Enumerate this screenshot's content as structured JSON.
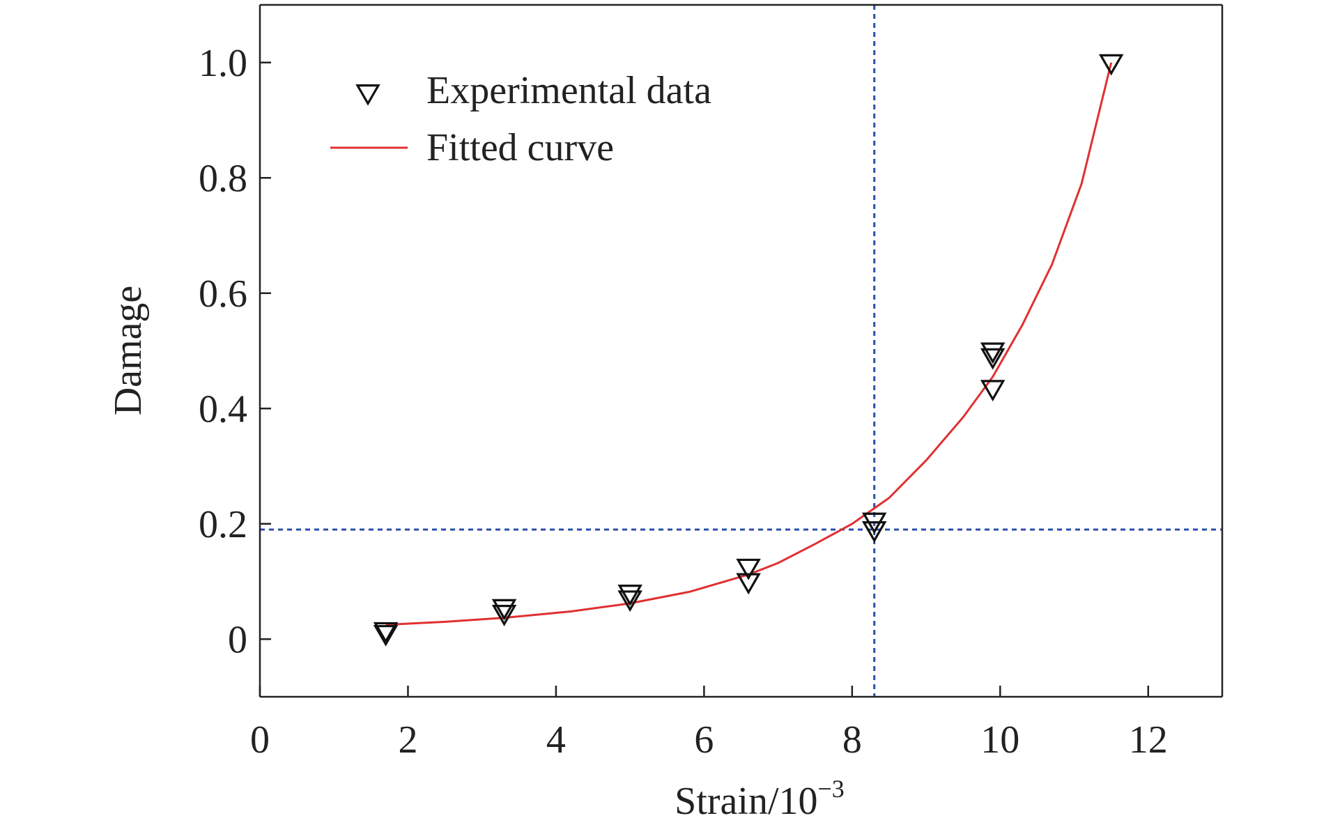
{
  "chart_data": {
    "type": "scatter",
    "title": "",
    "xlabel": "Strain/10",
    "xlabel_sup": "−3",
    "ylabel": "Damage",
    "xlim": [
      0,
      13
    ],
    "ylim": [
      -0.1,
      1.1
    ],
    "x_ticks": [
      0,
      2,
      4,
      6,
      8,
      10,
      12
    ],
    "x_tick_labels": [
      "0",
      "2",
      "4",
      "6",
      "8",
      "10",
      "12"
    ],
    "y_ticks": [
      0,
      0.2,
      0.4,
      0.6,
      0.8,
      1.0
    ],
    "y_tick_labels": [
      "0",
      "0.2",
      "0.4",
      "0.6",
      "0.8",
      "1.0"
    ],
    "grid": false,
    "legend_position": "top-left",
    "series": [
      {
        "name": "Experimental data",
        "kind": "scatter",
        "marker": "down-triangle-open",
        "color": "#111111",
        "points": [
          {
            "x": 1.7,
            "y": 0.015
          },
          {
            "x": 1.7,
            "y": 0.01
          },
          {
            "x": 3.3,
            "y": 0.055
          },
          {
            "x": 3.3,
            "y": 0.045
          },
          {
            "x": 5.0,
            "y": 0.08
          },
          {
            "x": 5.0,
            "y": 0.07
          },
          {
            "x": 6.6,
            "y": 0.125
          },
          {
            "x": 6.6,
            "y": 0.1
          },
          {
            "x": 8.3,
            "y": 0.205
          },
          {
            "x": 8.3,
            "y": 0.19
          },
          {
            "x": 9.9,
            "y": 0.5
          },
          {
            "x": 9.9,
            "y": 0.49
          },
          {
            "x": 9.9,
            "y": 0.435
          },
          {
            "x": 11.5,
            "y": 1.0
          }
        ]
      },
      {
        "name": "Fitted curve",
        "kind": "line",
        "color": "#e03030",
        "points": [
          {
            "x": 1.7,
            "y": 0.025
          },
          {
            "x": 2.5,
            "y": 0.03
          },
          {
            "x": 3.3,
            "y": 0.037
          },
          {
            "x": 4.2,
            "y": 0.048
          },
          {
            "x": 5.0,
            "y": 0.062
          },
          {
            "x": 5.8,
            "y": 0.082
          },
          {
            "x": 6.6,
            "y": 0.112
          },
          {
            "x": 7.0,
            "y": 0.132
          },
          {
            "x": 7.5,
            "y": 0.165
          },
          {
            "x": 8.0,
            "y": 0.2
          },
          {
            "x": 8.5,
            "y": 0.245
          },
          {
            "x": 9.0,
            "y": 0.31
          },
          {
            "x": 9.5,
            "y": 0.385
          },
          {
            "x": 9.9,
            "y": 0.455
          },
          {
            "x": 10.3,
            "y": 0.545
          },
          {
            "x": 10.7,
            "y": 0.65
          },
          {
            "x": 11.1,
            "y": 0.79
          },
          {
            "x": 11.5,
            "y": 1.0
          }
        ]
      }
    ],
    "reference_lines": [
      {
        "orientation": "vertical",
        "value": 8.3,
        "color": "#2b4ea8"
      },
      {
        "orientation": "horizontal",
        "value": 0.19,
        "color": "#2b4ea8"
      }
    ]
  }
}
